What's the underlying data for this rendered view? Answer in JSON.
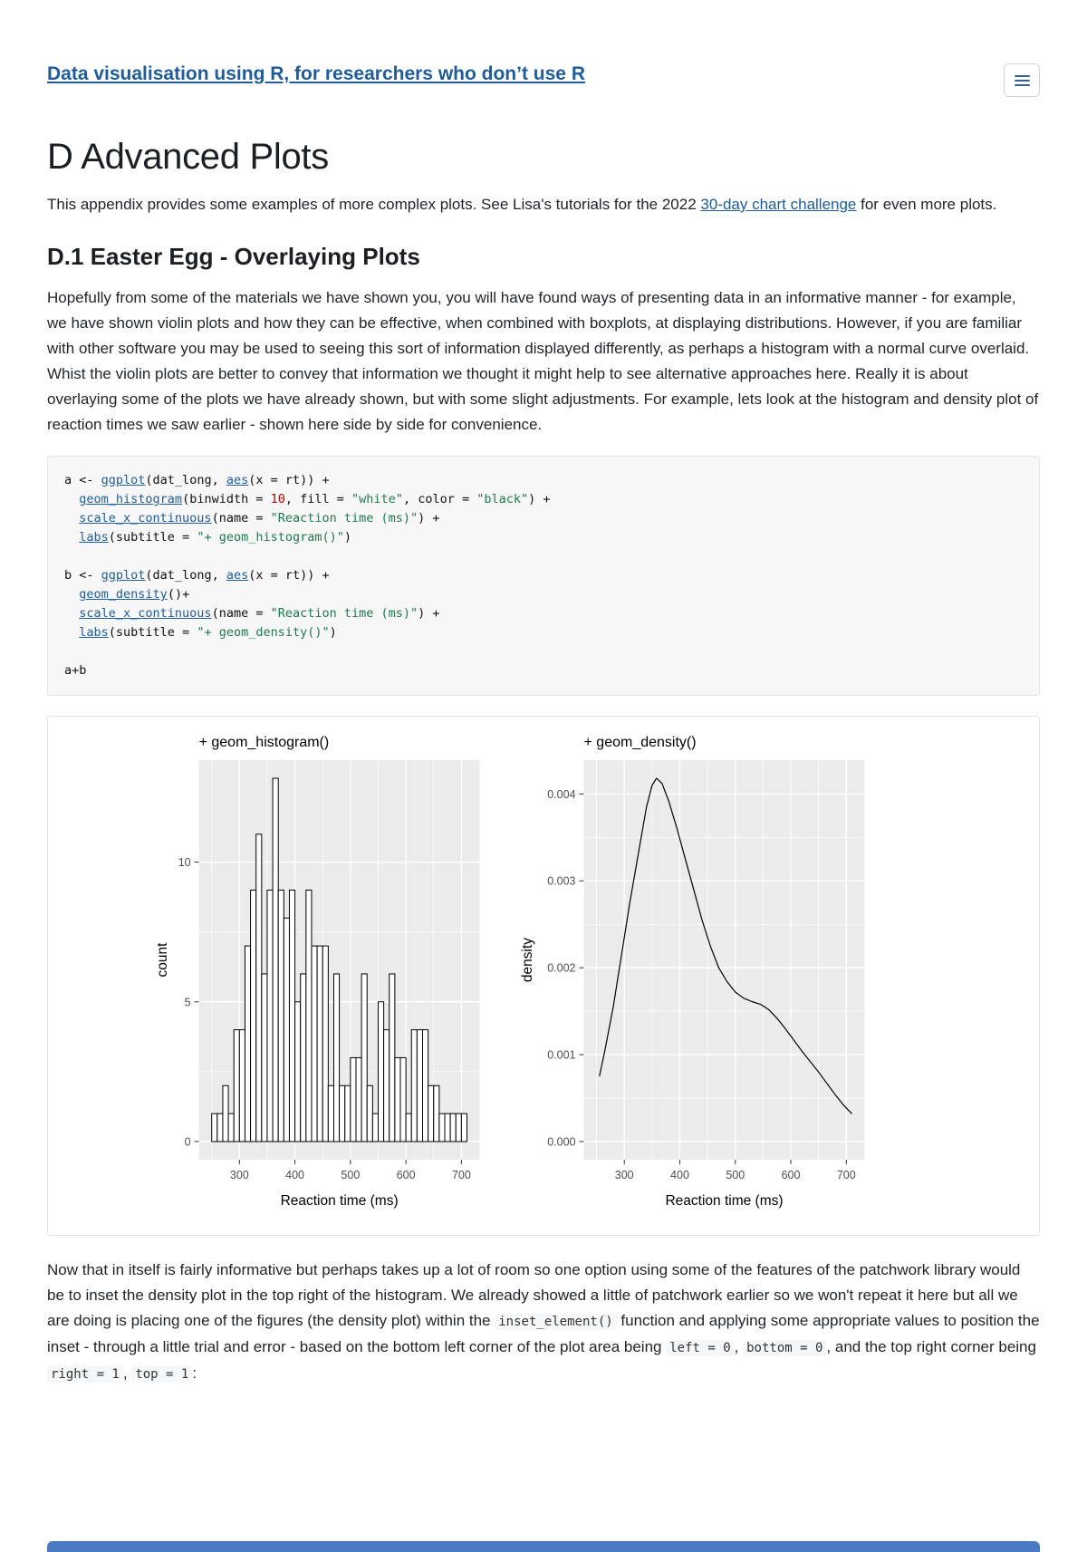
{
  "colors": {
    "link": "#1f5c99",
    "text": "#212529",
    "code_bg": "#f7f7f7",
    "code_border": "#e1e4e8",
    "string": "#20794d",
    "number": "#ad0000",
    "border": "#dee2e6",
    "strip_blue": "#4a79c5"
  },
  "header": {
    "book_title": "Data visualisation using R, for researchers who don’t use R",
    "menu_icon": "hamburger-icon"
  },
  "title": "D Advanced Plots",
  "intro": {
    "pre": "This appendix provides some examples of more complex plots. See Lisa's tutorials for the 2022 ",
    "link_text": "30-day chart challenge",
    "post": " for even more plots."
  },
  "section": {
    "heading": "D.1 Easter Egg - Overlaying Plots",
    "paragraph": "Hopefully from some of the materials we have shown you, you will have found ways of presenting data in an informative manner - for example, we have shown violin plots and how they can be effective, when combined with boxplots, at displaying distributions. However, if you are familiar with other software you may be used to seeing this sort of information displayed differently, as perhaps a histogram with a normal curve overlaid. Whist the violin plots are better to convey that information we thought it might help to see alternative approaches here. Really it is about overlaying some of the plots we have already shown, but with some slight adjustments. For example, lets look at the histogram and density plot of reaction times we saw earlier - shown here side by side for convenience."
  },
  "code_block": {
    "lines": [
      [
        [
          "p",
          "a <- "
        ],
        [
          "f",
          "ggplot"
        ],
        [
          "p",
          "(dat_long, "
        ],
        [
          "f",
          "aes"
        ],
        [
          "p",
          "(x = rt)) +"
        ]
      ],
      [
        [
          "p",
          "  "
        ],
        [
          "f",
          "geom_histogram"
        ],
        [
          "p",
          "(binwidth = "
        ],
        [
          "n",
          "10"
        ],
        [
          "p",
          ", fill = "
        ],
        [
          "s",
          "\"white\""
        ],
        [
          "p",
          ", color = "
        ],
        [
          "s",
          "\"black\""
        ],
        [
          "p",
          ") +"
        ]
      ],
      [
        [
          "p",
          "  "
        ],
        [
          "f",
          "scale_x_continuous"
        ],
        [
          "p",
          "(name = "
        ],
        [
          "s",
          "\"Reaction time (ms)\""
        ],
        [
          "p",
          ") +"
        ]
      ],
      [
        [
          "p",
          "  "
        ],
        [
          "f",
          "labs"
        ],
        [
          "p",
          "(subtitle = "
        ],
        [
          "s",
          "\"+ geom_histogram()\""
        ],
        [
          "p",
          ")"
        ]
      ],
      [],
      [
        [
          "p",
          "b <- "
        ],
        [
          "f",
          "ggplot"
        ],
        [
          "p",
          "(dat_long, "
        ],
        [
          "f",
          "aes"
        ],
        [
          "p",
          "(x = rt)) +"
        ]
      ],
      [
        [
          "p",
          "  "
        ],
        [
          "f",
          "geom_density"
        ],
        [
          "p",
          "()+"
        ]
      ],
      [
        [
          "p",
          "  "
        ],
        [
          "f",
          "scale_x_continuous"
        ],
        [
          "p",
          "(name = "
        ],
        [
          "s",
          "\"Reaction time (ms)\""
        ],
        [
          "p",
          ") +"
        ]
      ],
      [
        [
          "p",
          "  "
        ],
        [
          "f",
          "labs"
        ],
        [
          "p",
          "(subtitle = "
        ],
        [
          "s",
          "\"+ geom_density()\""
        ],
        [
          "p",
          ")"
        ]
      ],
      [],
      [
        [
          "p",
          "a+b"
        ]
      ]
    ]
  },
  "chart_data": [
    {
      "type": "bar",
      "name": "histogram-chart",
      "subtitle": "+ geom_histogram()",
      "xlabel": "Reaction time (ms)",
      "ylabel": "count",
      "xlim": [
        227,
        733
      ],
      "ylim": [
        -0.65,
        13.65
      ],
      "x_major": [
        300,
        400,
        500,
        600,
        700
      ],
      "x_tick_labels": [
        "300",
        "400",
        "500",
        "600",
        "700"
      ],
      "x_minor": [
        250,
        350,
        450,
        550,
        650
      ],
      "y_major": [
        0,
        5,
        10
      ],
      "y_tick_labels": [
        "0",
        "5",
        "10"
      ],
      "y_minor": [
        2.5,
        7.5
      ],
      "bin_start": 250,
      "binwidth": 10,
      "counts": [
        1,
        1,
        2,
        1,
        4,
        4,
        7,
        9,
        11,
        6,
        9,
        13,
        9,
        8,
        9,
        5,
        6,
        9,
        7,
        7,
        7,
        2,
        6,
        2,
        2,
        3,
        3,
        6,
        2,
        1,
        5,
        4,
        6,
        3,
        3,
        1,
        4,
        4,
        4,
        2,
        2,
        1,
        1,
        1,
        1,
        1
      ],
      "bar_fill": "#ffffff",
      "bar_stroke": "#000000",
      "panel_bg": "#ebebeb",
      "grid": "on",
      "legend": "none"
    },
    {
      "type": "line",
      "name": "density-chart",
      "subtitle": "+ geom_density()",
      "xlabel": "Reaction time (ms)",
      "ylabel": "density",
      "xlim": [
        227,
        733
      ],
      "ylim": [
        -0.000209,
        0.004389
      ],
      "x_major": [
        300,
        400,
        500,
        600,
        700
      ],
      "x_tick_labels": [
        "300",
        "400",
        "500",
        "600",
        "700"
      ],
      "x_minor": [
        250,
        350,
        450,
        550,
        650
      ],
      "y_major": [
        0,
        0.001,
        0.002,
        0.003,
        0.004
      ],
      "y_tick_labels": [
        "0.000",
        "0.001",
        "0.002",
        "0.003",
        "0.004"
      ],
      "y_minor": [
        0.0005,
        0.0015,
        0.0025,
        0.0035
      ],
      "points_x": [
        255,
        265,
        280,
        295,
        310,
        325,
        340,
        350,
        358,
        368,
        380,
        395,
        410,
        425,
        440,
        455,
        470,
        485,
        500,
        515,
        530,
        545,
        560,
        575,
        590,
        605,
        620,
        635,
        650,
        665,
        680,
        695,
        710
      ],
      "points_y": [
        0.00075,
        0.00105,
        0.00155,
        0.00215,
        0.00275,
        0.0033,
        0.00385,
        0.0041,
        0.00418,
        0.00412,
        0.00392,
        0.0036,
        0.00325,
        0.0029,
        0.00255,
        0.00225,
        0.002,
        0.00184,
        0.00172,
        0.00165,
        0.00161,
        0.00158,
        0.00152,
        0.00142,
        0.0013,
        0.00117,
        0.00104,
        0.00092,
        0.0008,
        0.00067,
        0.00054,
        0.00042,
        0.00032
      ],
      "line_color": "#000000",
      "panel_bg": "#ebebeb",
      "grid": "on",
      "legend": "none"
    }
  ],
  "outro": {
    "segments": [
      [
        "t",
        "Now that in itself is fairly informative but perhaps takes up a lot of room so one option using some of the features of the patchwork library would be to inset the density plot in the top right of the histogram. We already showed a little of patchwork earlier so we won't repeat it here but all we are doing is placing one of the figures (the density plot) within the "
      ],
      [
        "c",
        "inset_element()"
      ],
      [
        "t",
        " function and applying some appropriate values to position the inset - through a little trial and error - based on the bottom left corner of the plot area being "
      ],
      [
        "c",
        "left = 0"
      ],
      [
        "t",
        ", "
      ],
      [
        "c",
        "bottom = 0"
      ],
      [
        "t",
        ", and the top right corner being "
      ],
      [
        "c",
        "right = 1"
      ],
      [
        "t",
        ", "
      ],
      [
        "c",
        "top = 1"
      ],
      [
        "t",
        ":"
      ]
    ]
  }
}
